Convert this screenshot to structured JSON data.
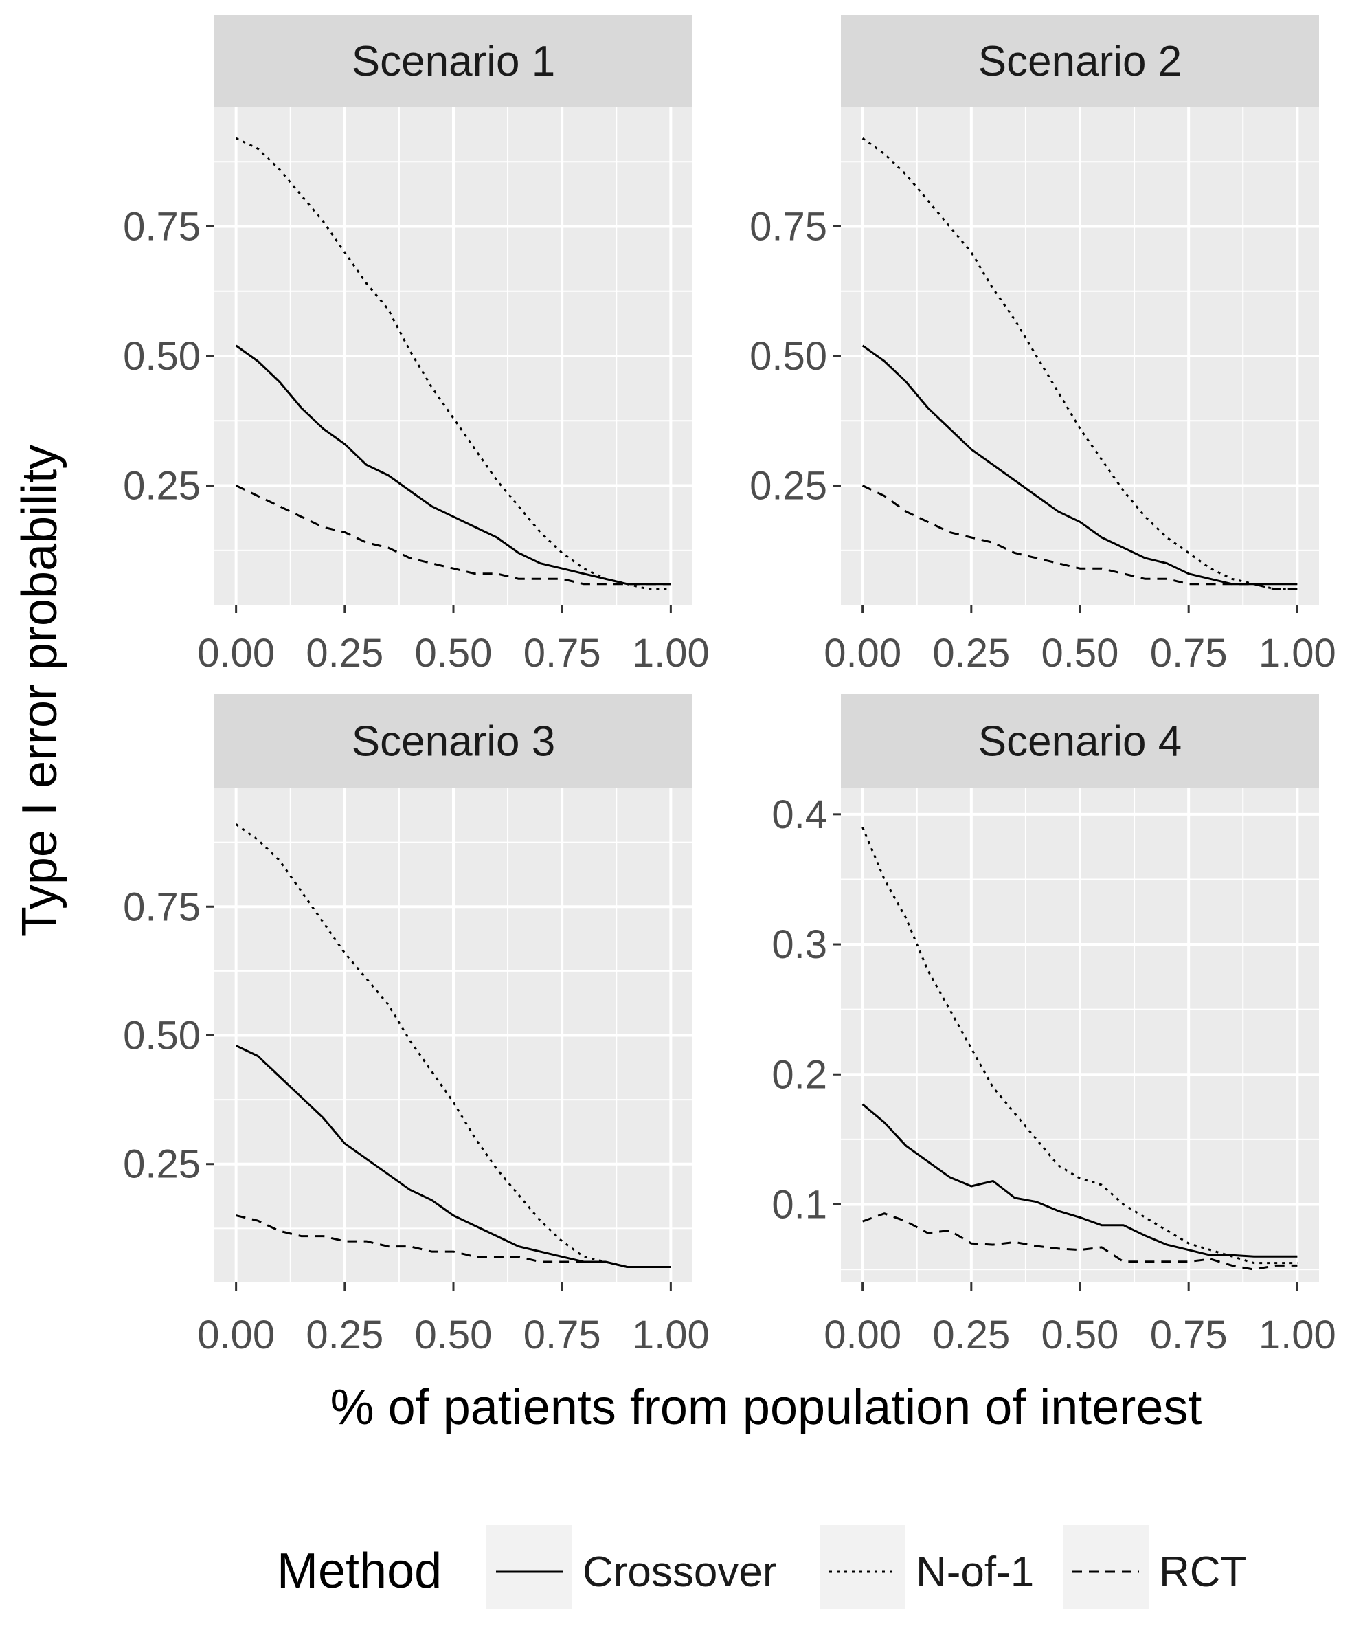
{
  "chart_data": {
    "type": "line",
    "ylabel": "Type I error probability",
    "xlabel": "% of patients from population of interest",
    "legend": {
      "title": "Method",
      "position": "bottom",
      "entries": [
        {
          "label": "Crossover",
          "linetype": "solid"
        },
        {
          "label": "N-of-1",
          "linetype": "dotted"
        },
        {
          "label": "RCT",
          "linetype": "dashed"
        }
      ]
    },
    "panels": [
      {
        "title": "Scenario 1",
        "xlim": [
          -0.05,
          1.05
        ],
        "ylim": [
          0.02,
          0.98
        ],
        "y_ticks": [
          {
            "v": 0.25,
            "label": "0.25"
          },
          {
            "v": 0.5,
            "label": "0.50"
          },
          {
            "v": 0.75,
            "label": "0.75"
          }
        ],
        "x_ticks": [
          {
            "v": 0,
            "label": "0.00"
          },
          {
            "v": 0.25,
            "label": "0.25"
          },
          {
            "v": 0.5,
            "label": "0.50"
          },
          {
            "v": 0.75,
            "label": "0.75"
          },
          {
            "v": 1,
            "label": "1.00"
          }
        ],
        "series": [
          {
            "name": "Crossover",
            "x": [
              0,
              0.05,
              0.1,
              0.15,
              0.2,
              0.25,
              0.3,
              0.35,
              0.4,
              0.45,
              0.5,
              0.55,
              0.6,
              0.65,
              0.7,
              0.75,
              0.8,
              0.85,
              0.9,
              0.95,
              1.0
            ],
            "y": [
              0.52,
              0.49,
              0.45,
              0.4,
              0.36,
              0.33,
              0.29,
              0.27,
              0.24,
              0.21,
              0.19,
              0.17,
              0.15,
              0.12,
              0.1,
              0.09,
              0.08,
              0.07,
              0.06,
              0.06,
              0.06
            ]
          },
          {
            "name": "N-of-1",
            "x": [
              0,
              0.05,
              0.1,
              0.15,
              0.2,
              0.25,
              0.3,
              0.35,
              0.4,
              0.45,
              0.5,
              0.55,
              0.6,
              0.65,
              0.7,
              0.75,
              0.8,
              0.85,
              0.9,
              0.95,
              1.0
            ],
            "y": [
              0.92,
              0.9,
              0.86,
              0.81,
              0.76,
              0.7,
              0.64,
              0.59,
              0.51,
              0.44,
              0.38,
              0.32,
              0.26,
              0.21,
              0.16,
              0.12,
              0.09,
              0.07,
              0.06,
              0.05,
              0.05
            ]
          },
          {
            "name": "RCT",
            "x": [
              0,
              0.05,
              0.1,
              0.15,
              0.2,
              0.25,
              0.3,
              0.35,
              0.4,
              0.45,
              0.5,
              0.55,
              0.6,
              0.65,
              0.7,
              0.75,
              0.8,
              0.85,
              0.9,
              0.95,
              1.0
            ],
            "y": [
              0.25,
              0.23,
              0.21,
              0.19,
              0.17,
              0.16,
              0.14,
              0.13,
              0.11,
              0.1,
              0.09,
              0.08,
              0.08,
              0.07,
              0.07,
              0.07,
              0.06,
              0.06,
              0.06,
              0.06,
              0.06
            ]
          }
        ]
      },
      {
        "title": "Scenario 2",
        "xlim": [
          -0.05,
          1.05
        ],
        "ylim": [
          0.02,
          0.98
        ],
        "y_ticks": [
          {
            "v": 0.25,
            "label": "0.25"
          },
          {
            "v": 0.5,
            "label": "0.50"
          },
          {
            "v": 0.75,
            "label": "0.75"
          }
        ],
        "x_ticks": [
          {
            "v": 0,
            "label": "0.00"
          },
          {
            "v": 0.25,
            "label": "0.25"
          },
          {
            "v": 0.5,
            "label": "0.50"
          },
          {
            "v": 0.75,
            "label": "0.75"
          },
          {
            "v": 1,
            "label": "1.00"
          }
        ],
        "series": [
          {
            "name": "Crossover",
            "x": [
              0,
              0.05,
              0.1,
              0.15,
              0.2,
              0.25,
              0.3,
              0.35,
              0.4,
              0.45,
              0.5,
              0.55,
              0.6,
              0.65,
              0.7,
              0.75,
              0.8,
              0.85,
              0.9,
              0.95,
              1.0
            ],
            "y": [
              0.52,
              0.49,
              0.45,
              0.4,
              0.36,
              0.32,
              0.29,
              0.26,
              0.23,
              0.2,
              0.18,
              0.15,
              0.13,
              0.11,
              0.1,
              0.08,
              0.07,
              0.06,
              0.06,
              0.06,
              0.06
            ]
          },
          {
            "name": "N-of-1",
            "x": [
              0,
              0.05,
              0.1,
              0.15,
              0.2,
              0.25,
              0.3,
              0.35,
              0.4,
              0.45,
              0.5,
              0.55,
              0.6,
              0.65,
              0.7,
              0.75,
              0.8,
              0.85,
              0.9,
              0.95,
              1.0
            ],
            "y": [
              0.92,
              0.89,
              0.85,
              0.8,
              0.75,
              0.7,
              0.63,
              0.57,
              0.5,
              0.43,
              0.36,
              0.3,
              0.24,
              0.19,
              0.15,
              0.12,
              0.09,
              0.07,
              0.06,
              0.05,
              0.05
            ]
          },
          {
            "name": "RCT",
            "x": [
              0,
              0.05,
              0.1,
              0.15,
              0.2,
              0.25,
              0.3,
              0.35,
              0.4,
              0.45,
              0.5,
              0.55,
              0.6,
              0.65,
              0.7,
              0.75,
              0.8,
              0.85,
              0.9,
              0.95,
              1.0
            ],
            "y": [
              0.25,
              0.23,
              0.2,
              0.18,
              0.16,
              0.15,
              0.14,
              0.12,
              0.11,
              0.1,
              0.09,
              0.09,
              0.08,
              0.07,
              0.07,
              0.06,
              0.06,
              0.06,
              0.06,
              0.05,
              0.05
            ]
          }
        ]
      },
      {
        "title": "Scenario 3",
        "xlim": [
          -0.05,
          1.05
        ],
        "ylim": [
          0.02,
          0.98
        ],
        "y_ticks": [
          {
            "v": 0.25,
            "label": "0.25"
          },
          {
            "v": 0.5,
            "label": "0.50"
          },
          {
            "v": 0.75,
            "label": "0.75"
          }
        ],
        "x_ticks": [
          {
            "v": 0,
            "label": "0.00"
          },
          {
            "v": 0.25,
            "label": "0.25"
          },
          {
            "v": 0.5,
            "label": "0.50"
          },
          {
            "v": 0.75,
            "label": "0.75"
          },
          {
            "v": 1,
            "label": "1.00"
          }
        ],
        "series": [
          {
            "name": "Crossover",
            "x": [
              0,
              0.05,
              0.1,
              0.15,
              0.2,
              0.25,
              0.3,
              0.35,
              0.4,
              0.45,
              0.5,
              0.55,
              0.6,
              0.65,
              0.7,
              0.75,
              0.8,
              0.85,
              0.9,
              0.95,
              1.0
            ],
            "y": [
              0.48,
              0.46,
              0.42,
              0.38,
              0.34,
              0.29,
              0.26,
              0.23,
              0.2,
              0.18,
              0.15,
              0.13,
              0.11,
              0.09,
              0.08,
              0.07,
              0.06,
              0.06,
              0.05,
              0.05,
              0.05
            ]
          },
          {
            "name": "N-of-1",
            "x": [
              0,
              0.05,
              0.1,
              0.15,
              0.2,
              0.25,
              0.3,
              0.35,
              0.4,
              0.45,
              0.5,
              0.55,
              0.6,
              0.65,
              0.7,
              0.75,
              0.8,
              0.85,
              0.9,
              0.95,
              1.0
            ],
            "y": [
              0.91,
              0.88,
              0.84,
              0.78,
              0.72,
              0.66,
              0.61,
              0.56,
              0.49,
              0.43,
              0.37,
              0.3,
              0.24,
              0.19,
              0.14,
              0.1,
              0.07,
              0.06,
              0.05,
              0.05,
              0.05
            ]
          },
          {
            "name": "RCT",
            "x": [
              0,
              0.05,
              0.1,
              0.15,
              0.2,
              0.25,
              0.3,
              0.35,
              0.4,
              0.45,
              0.5,
              0.55,
              0.6,
              0.65,
              0.7,
              0.75,
              0.8,
              0.85,
              0.9,
              0.95,
              1.0
            ],
            "y": [
              0.15,
              0.14,
              0.12,
              0.11,
              0.11,
              0.1,
              0.1,
              0.09,
              0.09,
              0.08,
              0.08,
              0.07,
              0.07,
              0.07,
              0.06,
              0.06,
              0.06,
              0.06,
              0.05,
              0.05,
              0.05
            ]
          }
        ]
      },
      {
        "title": "Scenario 4",
        "xlim": [
          -0.05,
          1.05
        ],
        "ylim": [
          0.04,
          0.42
        ],
        "y_ticks": [
          {
            "v": 0.1,
            "label": "0.1"
          },
          {
            "v": 0.2,
            "label": "0.2"
          },
          {
            "v": 0.3,
            "label": "0.3"
          },
          {
            "v": 0.4,
            "label": "0.4"
          }
        ],
        "x_ticks": [
          {
            "v": 0,
            "label": "0.00"
          },
          {
            "v": 0.25,
            "label": "0.25"
          },
          {
            "v": 0.5,
            "label": "0.50"
          },
          {
            "v": 0.75,
            "label": "0.75"
          },
          {
            "v": 1,
            "label": "1.00"
          }
        ],
        "series": [
          {
            "name": "Crossover",
            "x": [
              0,
              0.05,
              0.1,
              0.15,
              0.2,
              0.25,
              0.3,
              0.35,
              0.4,
              0.45,
              0.5,
              0.55,
              0.6,
              0.65,
              0.7,
              0.75,
              0.8,
              0.85,
              0.9,
              0.95,
              1.0
            ],
            "y": [
              0.177,
              0.163,
              0.145,
              0.133,
              0.121,
              0.114,
              0.118,
              0.105,
              0.102,
              0.095,
              0.09,
              0.084,
              0.084,
              0.076,
              0.069,
              0.065,
              0.061,
              0.061,
              0.06,
              0.06,
              0.06
            ]
          },
          {
            "name": "N-of-1",
            "x": [
              0,
              0.05,
              0.1,
              0.15,
              0.2,
              0.25,
              0.3,
              0.35,
              0.4,
              0.45,
              0.5,
              0.55,
              0.6,
              0.65,
              0.7,
              0.75,
              0.8,
              0.85,
              0.9,
              0.95,
              1.0
            ],
            "y": [
              0.39,
              0.35,
              0.32,
              0.28,
              0.25,
              0.22,
              0.19,
              0.17,
              0.15,
              0.13,
              0.12,
              0.115,
              0.1,
              0.09,
              0.08,
              0.07,
              0.065,
              0.06,
              0.055,
              0.055,
              0.055
            ]
          },
          {
            "name": "RCT",
            "x": [
              0,
              0.05,
              0.1,
              0.15,
              0.2,
              0.25,
              0.3,
              0.35,
              0.4,
              0.45,
              0.5,
              0.55,
              0.6,
              0.65,
              0.7,
              0.75,
              0.8,
              0.85,
              0.9,
              0.95,
              1.0
            ],
            "y": [
              0.087,
              0.093,
              0.087,
              0.078,
              0.08,
              0.07,
              0.069,
              0.071,
              0.068,
              0.066,
              0.065,
              0.067,
              0.056,
              0.056,
              0.056,
              0.056,
              0.058,
              0.053,
              0.05,
              0.053,
              0.053
            ]
          }
        ]
      }
    ]
  }
}
